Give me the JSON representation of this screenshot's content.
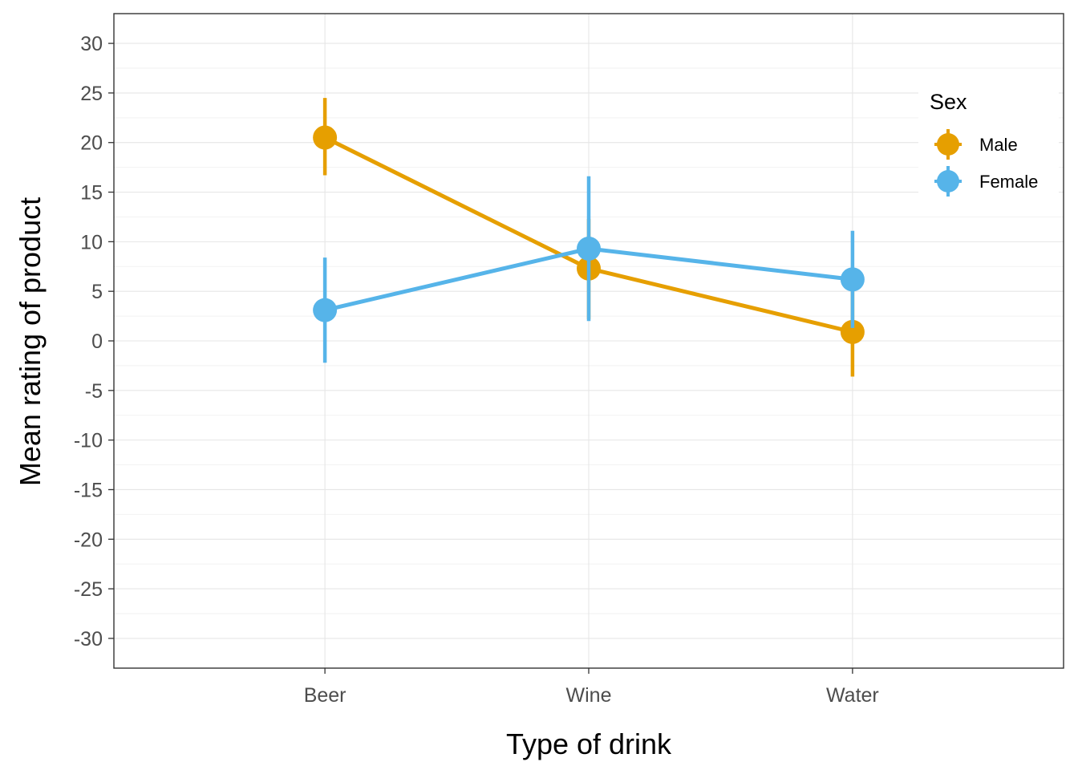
{
  "chart_data": {
    "type": "line",
    "xlabel": "Type of drink",
    "ylabel": "Mean rating of product",
    "categories": [
      "Beer",
      "Wine",
      "Water"
    ],
    "ylim": [
      -33,
      33
    ],
    "yticks": [
      -30,
      -25,
      -20,
      -15,
      -10,
      -5,
      0,
      5,
      10,
      15,
      20,
      25,
      30
    ],
    "grid": true,
    "legend": {
      "title": "Sex",
      "placement": "right"
    },
    "series": [
      {
        "name": "Male",
        "color": "#E69F00",
        "values": [
          20.5,
          7.3,
          0.9
        ],
        "ci_low": [
          16.7,
          2.2,
          -3.6
        ],
        "ci_high": [
          24.5,
          12.3,
          5.4
        ]
      },
      {
        "name": "Female",
        "color": "#56B4E9",
        "values": [
          3.1,
          9.3,
          6.2
        ],
        "ci_low": [
          -2.2,
          2.0,
          1.3
        ],
        "ci_high": [
          8.4,
          16.6,
          11.1
        ]
      }
    ]
  }
}
